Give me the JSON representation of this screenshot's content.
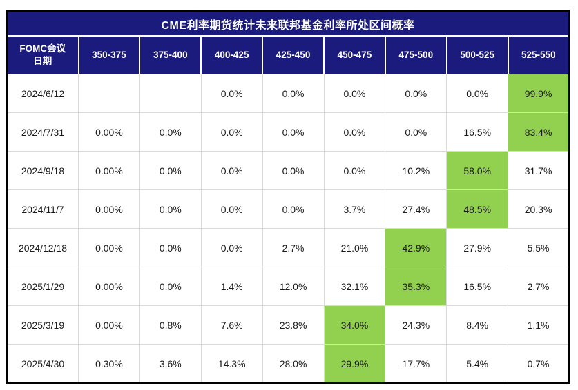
{
  "chart_data": {
    "type": "table",
    "title": "CME利率期货统计未来联邦基金利率所处区间概率",
    "columns": [
      "FOMC会议\n日期",
      "350-375",
      "375-400",
      "400-425",
      "425-450",
      "450-475",
      "475-500",
      "500-525",
      "525-550"
    ],
    "rows": [
      {
        "date": "2024/6/12",
        "values": [
          "",
          "",
          "0.0%",
          "0.0%",
          "0.0%",
          "0.0%",
          "0.0%",
          "99.9%"
        ],
        "highlight": 7
      },
      {
        "date": "2024/7/31",
        "values": [
          "0.00%",
          "0.0%",
          "0.0%",
          "0.0%",
          "0.0%",
          "0.0%",
          "16.5%",
          "83.4%"
        ],
        "highlight": 7
      },
      {
        "date": "2024/9/18",
        "values": [
          "0.00%",
          "0.0%",
          "0.0%",
          "0.0%",
          "0.0%",
          "10.2%",
          "58.0%",
          "31.7%"
        ],
        "highlight": 6
      },
      {
        "date": "2024/11/7",
        "values": [
          "0.00%",
          "0.0%",
          "0.0%",
          "0.0%",
          "3.7%",
          "27.4%",
          "48.5%",
          "20.3%"
        ],
        "highlight": 6
      },
      {
        "date": "2024/12/18",
        "values": [
          "0.00%",
          "0.0%",
          "0.0%",
          "2.7%",
          "21.0%",
          "42.9%",
          "27.9%",
          "5.5%"
        ],
        "highlight": 5
      },
      {
        "date": "2025/1/29",
        "values": [
          "0.00%",
          "0.0%",
          "1.4%",
          "12.0%",
          "32.1%",
          "35.3%",
          "16.5%",
          "2.7%"
        ],
        "highlight": 5
      },
      {
        "date": "2025/3/19",
        "values": [
          "0.00%",
          "0.8%",
          "7.6%",
          "23.8%",
          "34.0%",
          "24.3%",
          "8.4%",
          "1.1%"
        ],
        "highlight": 4
      },
      {
        "date": "2025/4/30",
        "values": [
          "0.30%",
          "3.6%",
          "14.3%",
          "28.0%",
          "29.9%",
          "17.7%",
          "5.4%",
          "0.7%"
        ],
        "highlight": 4
      }
    ],
    "legend_position": "none",
    "grid": true
  },
  "colors": {
    "header_bg": "#1B1B7E",
    "header_text": "#FFFFFF",
    "highlight_green": "#92D050",
    "grid_border": "#D9D9D9",
    "outer_border": "#000000",
    "cell_text": "#1A1A1A"
  }
}
